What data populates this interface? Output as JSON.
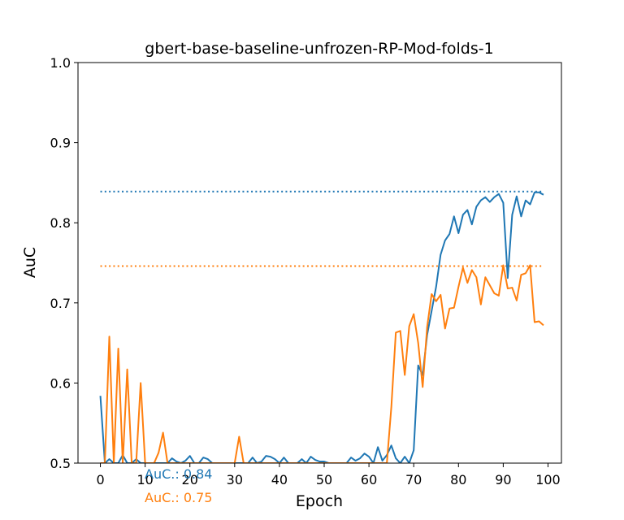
{
  "chart_data": {
    "type": "line",
    "title": "gbert-base-baseline-unfrozen-RP-Mod-folds-1",
    "xlabel": "Epoch",
    "ylabel": "AuC",
    "xlim": [
      -5,
      103
    ],
    "ylim": [
      0.5,
      1.0
    ],
    "xticks": [
      0,
      10,
      20,
      30,
      40,
      50,
      60,
      70,
      80,
      90,
      100
    ],
    "yticks": [
      0.5,
      0.6,
      0.7,
      0.8,
      0.9,
      1.0
    ],
    "x": [
      0,
      1,
      2,
      3,
      4,
      5,
      6,
      7,
      8,
      9,
      10,
      11,
      12,
      13,
      14,
      15,
      16,
      17,
      18,
      19,
      20,
      21,
      22,
      23,
      24,
      25,
      26,
      27,
      28,
      29,
      30,
      31,
      32,
      33,
      34,
      35,
      36,
      37,
      38,
      39,
      40,
      41,
      42,
      43,
      44,
      45,
      46,
      47,
      48,
      49,
      50,
      51,
      52,
      53,
      54,
      55,
      56,
      57,
      58,
      59,
      60,
      61,
      62,
      63,
      64,
      65,
      66,
      67,
      68,
      69,
      70,
      71,
      72,
      73,
      74,
      75,
      76,
      77,
      78,
      79,
      80,
      81,
      82,
      83,
      84,
      85,
      86,
      87,
      88,
      89,
      90,
      91,
      92,
      93,
      94,
      95,
      96,
      97,
      98,
      99
    ],
    "series": [
      {
        "color": "#1f77b4",
        "values": [
          0.584,
          0.5,
          0.505,
          0.5,
          0.5,
          0.51,
          0.5,
          0.5,
          0.505,
          0.5,
          0.5,
          0.5,
          0.5,
          0.5,
          0.5,
          0.5,
          0.506,
          0.502,
          0.5,
          0.503,
          0.509,
          0.5,
          0.5,
          0.507,
          0.505,
          0.5,
          0.5,
          0.5,
          0.5,
          0.5,
          0.5,
          0.5,
          0.5,
          0.5,
          0.507,
          0.5,
          0.502,
          0.509,
          0.508,
          0.505,
          0.5,
          0.507,
          0.5,
          0.5,
          0.5,
          0.505,
          0.5,
          0.508,
          0.504,
          0.502,
          0.502,
          0.5,
          0.5,
          0.5,
          0.5,
          0.5,
          0.507,
          0.503,
          0.506,
          0.512,
          0.508,
          0.5,
          0.52,
          0.503,
          0.51,
          0.522,
          0.506,
          0.5,
          0.508,
          0.5,
          0.516,
          0.622,
          0.61,
          0.66,
          0.69,
          0.72,
          0.76,
          0.778,
          0.786,
          0.808,
          0.787,
          0.81,
          0.816,
          0.798,
          0.82,
          0.828,
          0.832,
          0.826,
          0.832,
          0.836,
          0.825,
          0.731,
          0.81,
          0.833,
          0.808,
          0.828,
          0.823,
          0.838,
          0.838,
          0.835
        ],
        "reference": 0.839,
        "annotation": "AuC.: 0.84"
      },
      {
        "color": "#ff7f0e",
        "values": [
          0.5,
          0.5,
          0.658,
          0.5,
          0.643,
          0.5,
          0.617,
          0.5,
          0.5,
          0.6,
          0.5,
          0.5,
          0.5,
          0.513,
          0.538,
          0.5,
          0.5,
          0.5,
          0.5,
          0.5,
          0.5,
          0.5,
          0.5,
          0.5,
          0.5,
          0.5,
          0.5,
          0.5,
          0.5,
          0.5,
          0.5,
          0.533,
          0.5,
          0.5,
          0.5,
          0.5,
          0.5,
          0.5,
          0.5,
          0.5,
          0.5,
          0.5,
          0.5,
          0.5,
          0.5,
          0.5,
          0.5,
          0.5,
          0.5,
          0.5,
          0.5,
          0.5,
          0.5,
          0.5,
          0.5,
          0.5,
          0.5,
          0.5,
          0.5,
          0.5,
          0.5,
          0.5,
          0.5,
          0.5,
          0.5,
          0.57,
          0.663,
          0.665,
          0.61,
          0.671,
          0.686,
          0.65,
          0.595,
          0.67,
          0.711,
          0.702,
          0.71,
          0.668,
          0.693,
          0.694,
          0.72,
          0.744,
          0.725,
          0.741,
          0.732,
          0.698,
          0.732,
          0.722,
          0.712,
          0.709,
          0.747,
          0.718,
          0.719,
          0.703,
          0.735,
          0.737,
          0.747,
          0.676,
          0.677,
          0.672
        ],
        "reference": 0.746,
        "annotation": "AuC.: 0.75"
      }
    ]
  }
}
